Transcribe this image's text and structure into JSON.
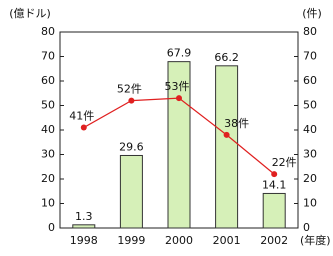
{
  "chart_data": {
    "type": "bar",
    "ylabel": "(億ドル)",
    "y2label": "(件)",
    "xlabel": "(年度)",
    "categories": [
      "1998",
      "1999",
      "2000",
      "2001",
      "2002"
    ],
    "series": [
      {
        "type": "bar",
        "color": "#d6f0b8",
        "values": [
          1.3,
          29.6,
          67.9,
          66.2,
          14.1
        ]
      },
      {
        "type": "line",
        "axis": "y2",
        "color": "#e02020",
        "values": [
          41,
          52,
          53,
          38,
          22
        ],
        "value_labels": [
          "41件",
          "52件",
          "53件",
          "38件",
          "22件"
        ]
      }
    ],
    "ylim": [
      0,
      80
    ],
    "yticks": [
      0,
      10,
      20,
      30,
      40,
      50,
      60,
      70,
      80
    ],
    "y2lim": [
      0,
      80
    ],
    "y2ticks": [
      0,
      10,
      20,
      30,
      40,
      50,
      60,
      70,
      80
    ]
  }
}
